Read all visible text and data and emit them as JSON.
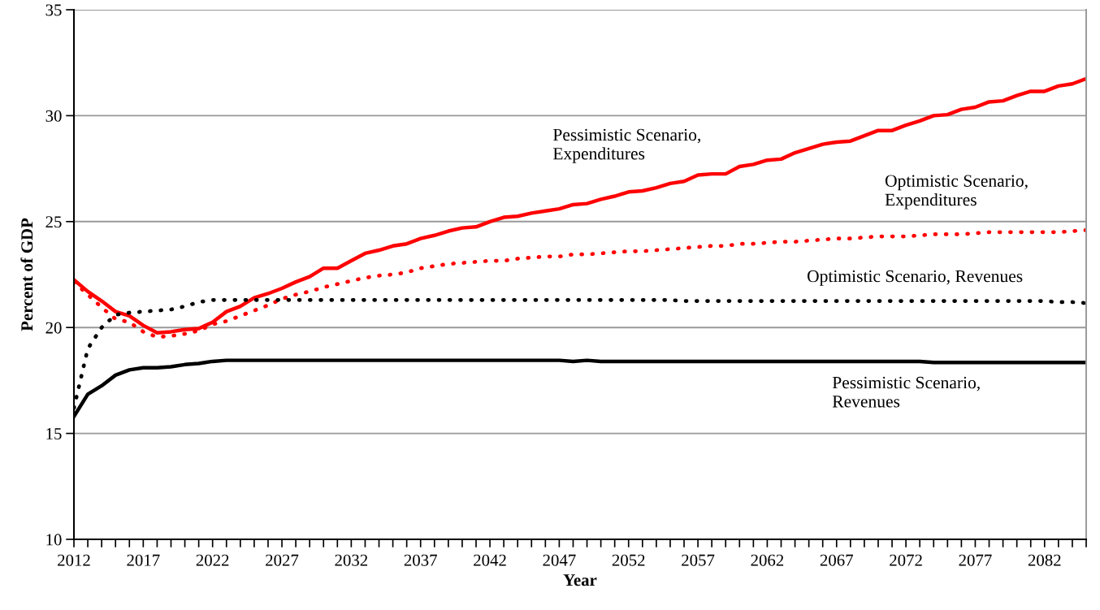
{
  "chart_data": {
    "type": "line",
    "xlabel": "Year",
    "ylabel": "Percent of GDP",
    "x": [
      2012,
      2013,
      2014,
      2015,
      2016,
      2017,
      2018,
      2019,
      2020,
      2021,
      2022,
      2023,
      2024,
      2025,
      2026,
      2027,
      2028,
      2029,
      2030,
      2031,
      2032,
      2033,
      2034,
      2035,
      2036,
      2037,
      2038,
      2039,
      2040,
      2041,
      2042,
      2043,
      2044,
      2045,
      2046,
      2047,
      2048,
      2049,
      2050,
      2051,
      2052,
      2053,
      2054,
      2055,
      2056,
      2057,
      2058,
      2059,
      2060,
      2061,
      2062,
      2063,
      2064,
      2065,
      2066,
      2067,
      2068,
      2069,
      2070,
      2071,
      2072,
      2073,
      2074,
      2075,
      2076,
      2077,
      2078,
      2079,
      2080,
      2081,
      2082,
      2083,
      2084,
      2085
    ],
    "series": [
      {
        "name": "Pessimistic Scenario,\nExpenditures",
        "color": "#ff0000",
        "line_style": "solid",
        "values": [
          22.25,
          21.7,
          21.25,
          20.75,
          20.55,
          20.1,
          19.75,
          19.8,
          19.9,
          19.95,
          20.25,
          20.75,
          21.0,
          21.4,
          21.6,
          21.85,
          22.15,
          22.4,
          22.8,
          22.8,
          23.15,
          23.5,
          23.65,
          23.85,
          23.95,
          24.2,
          24.35,
          24.55,
          24.7,
          24.75,
          25.0,
          25.2,
          25.25,
          25.4,
          25.5,
          25.6,
          25.8,
          25.85,
          26.05,
          26.2,
          26.4,
          26.45,
          26.6,
          26.8,
          26.9,
          27.2,
          27.25,
          27.25,
          27.6,
          27.7,
          27.9,
          27.95,
          28.25,
          28.45,
          28.65,
          28.75,
          28.8,
          29.05,
          29.3,
          29.3,
          29.55,
          29.75,
          30.0,
          30.05,
          30.3,
          30.4,
          30.65,
          30.7,
          30.95,
          31.15,
          31.15,
          31.4,
          31.5,
          31.75
        ]
      },
      {
        "name": "Optimistic Scenario,\nExpenditures",
        "color": "#ff0000",
        "line_style": "dotted",
        "values": [
          22.15,
          21.55,
          20.95,
          20.4,
          20.25,
          19.8,
          19.55,
          19.6,
          19.7,
          19.85,
          20.15,
          20.3,
          20.55,
          20.8,
          21.05,
          21.35,
          21.55,
          21.7,
          21.9,
          22.05,
          22.2,
          22.35,
          22.45,
          22.5,
          22.6,
          22.8,
          22.9,
          23.0,
          23.05,
          23.1,
          23.15,
          23.15,
          23.25,
          23.3,
          23.35,
          23.35,
          23.45,
          23.45,
          23.5,
          23.55,
          23.6,
          23.6,
          23.65,
          23.7,
          23.75,
          23.8,
          23.85,
          23.85,
          23.95,
          23.95,
          24.0,
          24.05,
          24.05,
          24.1,
          24.15,
          24.2,
          24.2,
          24.25,
          24.3,
          24.3,
          24.3,
          24.35,
          24.4,
          24.4,
          24.4,
          24.45,
          24.5,
          24.5,
          24.5,
          24.5,
          24.5,
          24.5,
          24.55,
          24.6
        ]
      },
      {
        "name": "Optimistic Scenario, Revenues",
        "color": "#000000",
        "line_style": "dotted",
        "values": [
          16.2,
          19.0,
          20.0,
          20.6,
          20.7,
          20.75,
          20.8,
          20.85,
          21.0,
          21.2,
          21.3,
          21.3,
          21.3,
          21.3,
          21.3,
          21.3,
          21.3,
          21.3,
          21.3,
          21.3,
          21.3,
          21.3,
          21.3,
          21.3,
          21.3,
          21.3,
          21.3,
          21.3,
          21.3,
          21.3,
          21.3,
          21.3,
          21.3,
          21.3,
          21.3,
          21.3,
          21.3,
          21.3,
          21.3,
          21.3,
          21.3,
          21.3,
          21.3,
          21.3,
          21.25,
          21.25,
          21.25,
          21.25,
          21.25,
          21.25,
          21.25,
          21.25,
          21.25,
          21.25,
          21.25,
          21.25,
          21.25,
          21.25,
          21.25,
          21.25,
          21.25,
          21.25,
          21.25,
          21.25,
          21.25,
          21.25,
          21.25,
          21.25,
          21.25,
          21.25,
          21.25,
          21.2,
          21.2,
          21.15
        ]
      },
      {
        "name": "Pessimistic Scenario,\nRevenues",
        "color": "#000000",
        "line_style": "solid",
        "values": [
          15.8,
          16.85,
          17.25,
          17.75,
          18.0,
          18.1,
          18.1,
          18.15,
          18.25,
          18.3,
          18.4,
          18.45,
          18.45,
          18.45,
          18.45,
          18.45,
          18.45,
          18.45,
          18.45,
          18.45,
          18.45,
          18.45,
          18.45,
          18.45,
          18.45,
          18.45,
          18.45,
          18.45,
          18.45,
          18.45,
          18.45,
          18.45,
          18.45,
          18.45,
          18.45,
          18.45,
          18.4,
          18.45,
          18.4,
          18.4,
          18.4,
          18.4,
          18.4,
          18.4,
          18.4,
          18.4,
          18.4,
          18.4,
          18.4,
          18.4,
          18.4,
          18.4,
          18.4,
          18.4,
          18.4,
          18.4,
          18.4,
          18.4,
          18.4,
          18.4,
          18.4,
          18.4,
          18.35,
          18.35,
          18.35,
          18.35,
          18.35,
          18.35,
          18.35,
          18.35,
          18.35,
          18.35,
          18.35,
          18.35
        ]
      }
    ],
    "xlim": [
      2012,
      2085
    ],
    "xticks": [
      2012,
      {
        "value": 2013,
        "label": null
      },
      {
        "value": 2014,
        "label": null
      },
      {
        "value": 2015,
        "label": null
      },
      {
        "value": 2016,
        "label": null
      },
      2017,
      {
        "value": 2018,
        "label": null
      },
      {
        "value": 2019,
        "label": null
      },
      {
        "value": 2020,
        "label": null
      },
      {
        "value": 2021,
        "label": null
      },
      2022,
      {
        "value": 2023,
        "label": null
      },
      {
        "value": 2024,
        "label": null
      },
      {
        "value": 2025,
        "label": null
      },
      {
        "value": 2026,
        "label": null
      },
      2027,
      {
        "value": 2028,
        "label": null
      },
      {
        "value": 2029,
        "label": null
      },
      {
        "value": 2030,
        "label": null
      },
      {
        "value": 2031,
        "label": null
      },
      2032,
      {
        "value": 2033,
        "label": null
      },
      {
        "value": 2034,
        "label": null
      },
      {
        "value": 2035,
        "label": null
      },
      {
        "value": 2036,
        "label": null
      },
      2037,
      {
        "value": 2038,
        "label": null
      },
      {
        "value": 2039,
        "label": null
      },
      {
        "value": 2040,
        "label": null
      },
      {
        "value": 2041,
        "label": null
      },
      2042,
      {
        "value": 2043,
        "label": null
      },
      {
        "value": 2044,
        "label": null
      },
      {
        "value": 2045,
        "label": null
      },
      {
        "value": 2046,
        "label": null
      },
      2047,
      {
        "value": 2048,
        "label": null
      },
      {
        "value": 2049,
        "label": null
      },
      {
        "value": 2050,
        "label": null
      },
      {
        "value": 2051,
        "label": null
      },
      2052,
      {
        "value": 2053,
        "label": null
      },
      {
        "value": 2054,
        "label": null
      },
      {
        "value": 2055,
        "label": null
      },
      {
        "value": 2056,
        "label": null
      },
      2057,
      {
        "value": 2058,
        "label": null
      },
      {
        "value": 2059,
        "label": null
      },
      {
        "value": 2060,
        "label": null
      },
      {
        "value": 2061,
        "label": null
      },
      2062,
      {
        "value": 2063,
        "label": null
      },
      {
        "value": 2064,
        "label": null
      },
      {
        "value": 2065,
        "label": null
      },
      {
        "value": 2066,
        "label": null
      },
      2067,
      {
        "value": 2068,
        "label": null
      },
      {
        "value": 2069,
        "label": null
      },
      {
        "value": 2070,
        "label": null
      },
      {
        "value": 2071,
        "label": null
      },
      2072,
      {
        "value": 2073,
        "label": null
      },
      {
        "value": 2074,
        "label": null
      },
      {
        "value": 2075,
        "label": null
      },
      {
        "value": 2076,
        "label": null
      },
      2077,
      {
        "value": 2078,
        "label": null
      },
      {
        "value": 2079,
        "label": null
      },
      {
        "value": 2080,
        "label": null
      },
      {
        "value": 2081,
        "label": null
      },
      2082,
      {
        "value": 2083,
        "label": null
      },
      {
        "value": 2084,
        "label": null
      },
      {
        "value": 2085,
        "label": null
      }
    ],
    "ylim": [
      10,
      35
    ],
    "yticks": [
      10,
      15,
      20,
      25,
      30,
      35
    ],
    "grid": "y",
    "marker": "none"
  }
}
